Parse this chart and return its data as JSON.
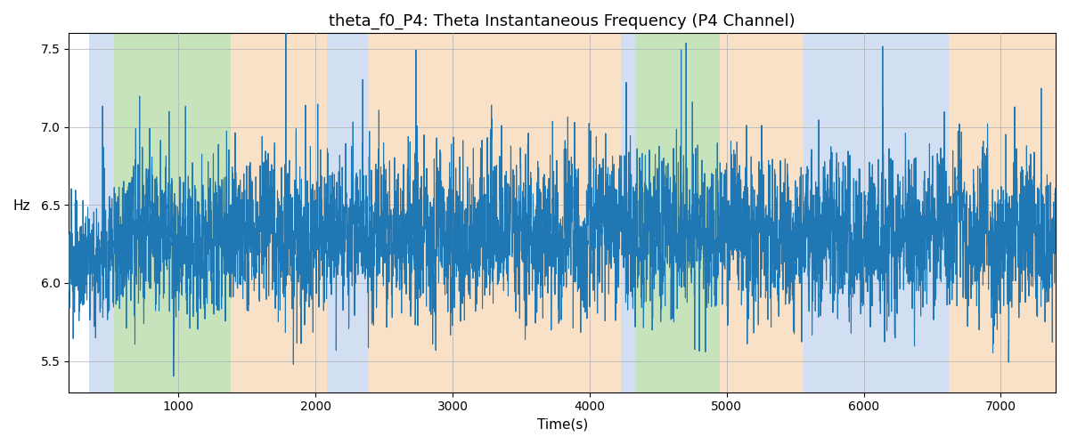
{
  "title": "theta_f0_P4: Theta Instantaneous Frequency (P4 Channel)",
  "xlabel": "Time(s)",
  "ylabel": "Hz",
  "ylim": [
    5.3,
    7.6
  ],
  "xlim": [
    200,
    7400
  ],
  "line_color": "#1f77b4",
  "line_width": 0.8,
  "background_color": "#ffffff",
  "grid_color": "#b0b0b0",
  "bg_regions": [
    {
      "xstart": 350,
      "xend": 530,
      "color": "#aec6e8",
      "alpha": 0.55
    },
    {
      "xstart": 530,
      "xend": 1380,
      "color": "#90c97a",
      "alpha": 0.5
    },
    {
      "xstart": 1380,
      "xend": 2080,
      "color": "#f5c99a",
      "alpha": 0.55
    },
    {
      "xstart": 2080,
      "xend": 2380,
      "color": "#aec6e8",
      "alpha": 0.55
    },
    {
      "xstart": 2380,
      "xend": 4230,
      "color": "#f5c99a",
      "alpha": 0.55
    },
    {
      "xstart": 4230,
      "xend": 4330,
      "color": "#aec6e8",
      "alpha": 0.55
    },
    {
      "xstart": 4330,
      "xend": 4950,
      "color": "#90c97a",
      "alpha": 0.5
    },
    {
      "xstart": 4950,
      "xend": 5560,
      "color": "#f5c99a",
      "alpha": 0.55
    },
    {
      "xstart": 5560,
      "xend": 6620,
      "color": "#aec6e8",
      "alpha": 0.55
    },
    {
      "xstart": 6620,
      "xend": 7400,
      "color": "#f5c99a",
      "alpha": 0.55
    }
  ],
  "x_start": 200,
  "x_end": 7400,
  "n_points": 7200,
  "base_freq": 6.3,
  "noise_std": 0.22,
  "spike_prob": 0.012,
  "spike_std": 0.45,
  "ar_coef": 0.45
}
